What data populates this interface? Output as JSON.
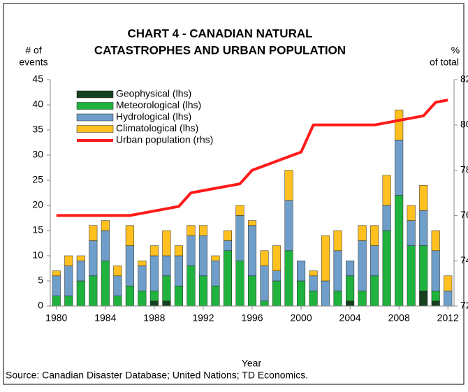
{
  "chart_data": {
    "type": "bar",
    "title": [
      "CHART 4 - CANADIAN NATURAL",
      "CATASTROPHES AND URBAN POPULATION"
    ],
    "y_label": [
      "# of",
      "events"
    ],
    "y2_label": [
      "%",
      "of total"
    ],
    "x_label": "Year",
    "source": "Source: Canadian Disaster Database; United Nations; TD Economics.",
    "stacked": true,
    "legend": "upper left",
    "categories": [
      "1980",
      null,
      null,
      null,
      "1984",
      null,
      null,
      null,
      "1988",
      null,
      null,
      null,
      "1992",
      null,
      null,
      null,
      "1996",
      null,
      null,
      null,
      "2000",
      null,
      null,
      null,
      "2004",
      null,
      null,
      null,
      "2008",
      null,
      null,
      null,
      "2012"
    ],
    "series": [
      {
        "name": "Geophysical (lhs)",
        "color": "#17401f",
        "values": [
          0,
          0,
          0,
          0,
          0,
          0,
          0,
          0,
          1,
          1,
          0,
          0,
          0,
          0,
          0,
          0,
          0,
          0,
          0,
          0,
          0,
          0,
          0,
          0,
          1,
          0,
          0,
          0,
          0,
          0,
          3,
          1,
          0
        ]
      },
      {
        "name": "Meteorological (lhs)",
        "color": "#1fb33e",
        "values": [
          2,
          2,
          5,
          6,
          9,
          2,
          4,
          3,
          2,
          5,
          4,
          8,
          6,
          4,
          11,
          9,
          6,
          1,
          5,
          11,
          5,
          3,
          0,
          3,
          5,
          3,
          6,
          15,
          22,
          12,
          9,
          2,
          0
        ]
      },
      {
        "name": "Hydrological (lhs)",
        "color": "#6e9ec9",
        "values": [
          4,
          6,
          4,
          7,
          6,
          4,
          8,
          5,
          7,
          4,
          6,
          6,
          8,
          5,
          2,
          9,
          10,
          7,
          2,
          10,
          4,
          3,
          5,
          8,
          3,
          10,
          6,
          5,
          11,
          5,
          7,
          8,
          3
        ]
      },
      {
        "name": "Climatological (lhs)",
        "color": "#ffc020",
        "values": [
          1,
          2,
          1,
          3,
          2,
          2,
          4,
          1,
          2,
          5,
          2,
          2,
          2,
          1,
          2,
          2,
          1,
          3,
          5,
          6,
          0,
          1,
          9,
          4,
          0,
          3,
          4,
          6,
          6,
          3,
          5,
          4,
          3
        ]
      },
      {
        "name": "Urban population (rhs)",
        "type": "line",
        "axis": "y2",
        "color": "#ff1a1a",
        "values": [
          76,
          76,
          76,
          76,
          76,
          76,
          76,
          76.1,
          76.2,
          76.3,
          76.4,
          77,
          77.1,
          77.2,
          77.3,
          77.4,
          78,
          78.2,
          78.4,
          78.6,
          78.8,
          80,
          80,
          80,
          80,
          80,
          80,
          80.1,
          80.2,
          80.3,
          80.4,
          81,
          81.1
        ]
      }
    ],
    "ylim": [
      0,
      45
    ],
    "yticks": [
      0,
      5,
      10,
      15,
      20,
      25,
      30,
      35,
      40,
      45
    ],
    "y2lim": [
      72,
      82
    ],
    "y2ticks": [
      72,
      74,
      76,
      78,
      80,
      82
    ]
  }
}
